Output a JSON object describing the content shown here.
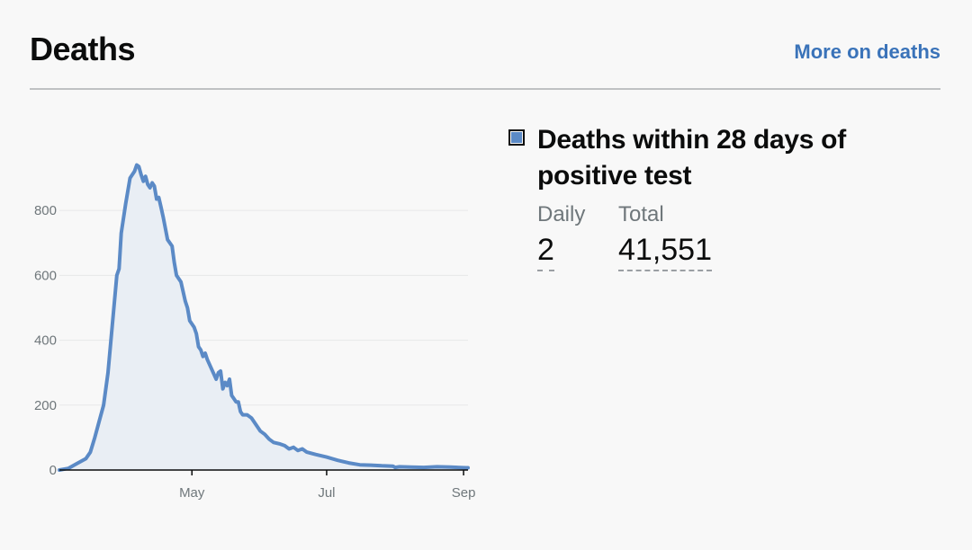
{
  "header": {
    "title": "Deaths",
    "more_link": "More on deaths"
  },
  "legend": {
    "label": "Deaths within 28 days of positive test",
    "color": "#5b8ac6",
    "daily_label": "Daily",
    "daily_value": "2",
    "total_label": "Total",
    "total_value": "41,551"
  },
  "chart_data": {
    "type": "area",
    "title": "",
    "xlabel": "",
    "ylabel": "",
    "ylim": [
      0,
      950
    ],
    "yticks": [
      0,
      200,
      400,
      600,
      800
    ],
    "xlim": [
      "2020-03-02",
      "2020-09-03"
    ],
    "xticks": [
      {
        "date": "2020-05-01",
        "label": "May"
      },
      {
        "date": "2020-07-01",
        "label": "Jul"
      },
      {
        "date": "2020-09-01",
        "label": "Sep"
      }
    ],
    "grid": true,
    "series": [
      {
        "color": "#5b8ac6",
        "fill": "#e9eef4",
        "points": [
          [
            "2020-03-02",
            0
          ],
          [
            "2020-03-06",
            5
          ],
          [
            "2020-03-10",
            20
          ],
          [
            "2020-03-14",
            35
          ],
          [
            "2020-03-16",
            55
          ],
          [
            "2020-03-18",
            100
          ],
          [
            "2020-03-20",
            150
          ],
          [
            "2020-03-22",
            200
          ],
          [
            "2020-03-24",
            300
          ],
          [
            "2020-03-26",
            450
          ],
          [
            "2020-03-28",
            600
          ],
          [
            "2020-03-29",
            620
          ],
          [
            "2020-03-30",
            730
          ],
          [
            "2020-04-01",
            820
          ],
          [
            "2020-04-03",
            900
          ],
          [
            "2020-04-05",
            920
          ],
          [
            "2020-04-06",
            940
          ],
          [
            "2020-04-07",
            935
          ],
          [
            "2020-04-08",
            910
          ],
          [
            "2020-04-09",
            890
          ],
          [
            "2020-04-10",
            905
          ],
          [
            "2020-04-11",
            880
          ],
          [
            "2020-04-12",
            870
          ],
          [
            "2020-04-13",
            885
          ],
          [
            "2020-04-14",
            875
          ],
          [
            "2020-04-15",
            835
          ],
          [
            "2020-04-16",
            840
          ],
          [
            "2020-04-17",
            810
          ],
          [
            "2020-04-18",
            780
          ],
          [
            "2020-04-20",
            710
          ],
          [
            "2020-04-22",
            690
          ],
          [
            "2020-04-23",
            640
          ],
          [
            "2020-04-24",
            600
          ],
          [
            "2020-04-26",
            580
          ],
          [
            "2020-04-28",
            520
          ],
          [
            "2020-04-29",
            500
          ],
          [
            "2020-04-30",
            460
          ],
          [
            "2020-05-02",
            440
          ],
          [
            "2020-05-03",
            420
          ],
          [
            "2020-05-04",
            380
          ],
          [
            "2020-05-05",
            370
          ],
          [
            "2020-05-06",
            350
          ],
          [
            "2020-05-07",
            360
          ],
          [
            "2020-05-08",
            340
          ],
          [
            "2020-05-10",
            310
          ],
          [
            "2020-05-12",
            280
          ],
          [
            "2020-05-13",
            300
          ],
          [
            "2020-05-14",
            305
          ],
          [
            "2020-05-15",
            250
          ],
          [
            "2020-05-16",
            270
          ],
          [
            "2020-05-17",
            260
          ],
          [
            "2020-05-18",
            280
          ],
          [
            "2020-05-19",
            230
          ],
          [
            "2020-05-20",
            220
          ],
          [
            "2020-05-21",
            210
          ],
          [
            "2020-05-22",
            210
          ],
          [
            "2020-05-23",
            180
          ],
          [
            "2020-05-24",
            170
          ],
          [
            "2020-05-26",
            170
          ],
          [
            "2020-05-28",
            160
          ],
          [
            "2020-05-30",
            140
          ],
          [
            "2020-06-01",
            120
          ],
          [
            "2020-06-03",
            110
          ],
          [
            "2020-06-05",
            95
          ],
          [
            "2020-06-07",
            85
          ],
          [
            "2020-06-10",
            80
          ],
          [
            "2020-06-12",
            75
          ],
          [
            "2020-06-14",
            65
          ],
          [
            "2020-06-16",
            70
          ],
          [
            "2020-06-18",
            60
          ],
          [
            "2020-06-20",
            65
          ],
          [
            "2020-06-22",
            55
          ],
          [
            "2020-06-26",
            48
          ],
          [
            "2020-07-01",
            40
          ],
          [
            "2020-07-06",
            30
          ],
          [
            "2020-07-11",
            22
          ],
          [
            "2020-07-16",
            16
          ],
          [
            "2020-07-21",
            15
          ],
          [
            "2020-07-26",
            13
          ],
          [
            "2020-07-31",
            12
          ],
          [
            "2020-08-01",
            8
          ],
          [
            "2020-08-03",
            10
          ],
          [
            "2020-08-08",
            9
          ],
          [
            "2020-08-14",
            8
          ],
          [
            "2020-08-20",
            10
          ],
          [
            "2020-08-26",
            9
          ],
          [
            "2020-09-02",
            7
          ],
          [
            "2020-09-03",
            7
          ]
        ]
      }
    ]
  }
}
